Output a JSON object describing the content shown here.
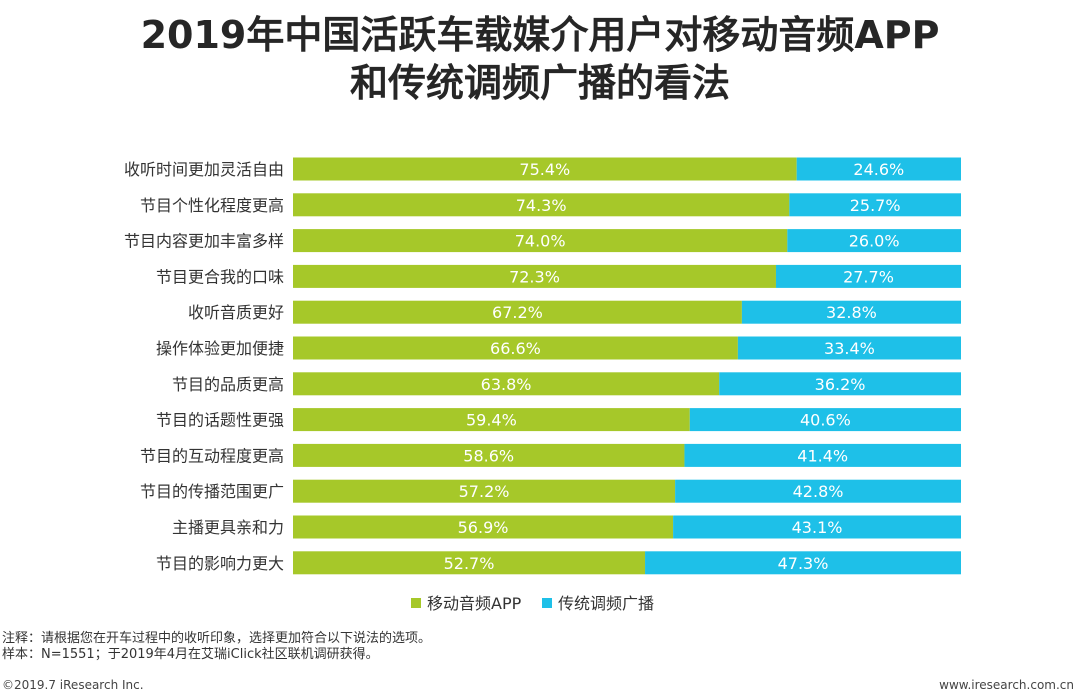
{
  "title_line1": "2019年中国活跃车载媒介用户对移动音频APP",
  "title_line2": "和传统调频广播的看法",
  "chart_data": {
    "type": "bar",
    "orientation": "horizontal",
    "stacked": true,
    "categories": [
      "收听时间更加灵活自由",
      "节目个性化程度更高",
      "节目内容更加丰富多样",
      "节目更合我的口味",
      "收听音质更好",
      "操作体验更加便捷",
      "节目的品质更高",
      "节目的话题性更强",
      "节目的互动程度更高",
      "节目的传播范围更广",
      "主播更具亲和力",
      "节目的影响力更大"
    ],
    "series": [
      {
        "name": "移动音频APP",
        "color": "#a6c829",
        "values": [
          75.4,
          74.3,
          74.0,
          72.3,
          67.2,
          66.6,
          63.8,
          59.4,
          58.6,
          57.2,
          56.9,
          52.7
        ],
        "labels": [
          "75.4%",
          "74.3%",
          "74.0%",
          "72.3%",
          "67.2%",
          "66.6%",
          "63.8%",
          "59.4%",
          "58.6%",
          "57.2%",
          "56.9%",
          "52.7%"
        ]
      },
      {
        "name": "传统调频广播",
        "color": "#1ec0e8",
        "values": [
          24.6,
          25.7,
          26.0,
          27.7,
          32.8,
          33.4,
          36.2,
          40.6,
          41.4,
          42.8,
          43.1,
          47.3
        ],
        "labels": [
          "24.6%",
          "25.7%",
          "26.0%",
          "27.7%",
          "32.8%",
          "33.4%",
          "36.2%",
          "40.6%",
          "41.4%",
          "42.8%",
          "43.1%",
          "47.3%"
        ]
      }
    ],
    "xlim": [
      0,
      100
    ],
    "legend": "bottom"
  },
  "notes": {
    "line1": "注释：请根据您在开车过程中的收听印象，选择更加符合以下说法的选项。",
    "line2": "样本：N=1551；于2019年4月在艾瑞iClick社区联机调研获得。"
  },
  "footer": {
    "left": "©2019.7 iResearch Inc.",
    "right": "www.iresearch.com.cn"
  }
}
